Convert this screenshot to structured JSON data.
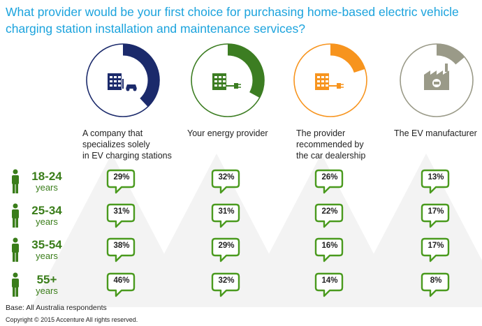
{
  "title": {
    "lines": [
      "What provider would be your first choice for purchasing home-based electric vehicle",
      "charging station installation and maintenance services?"
    ]
  },
  "colors": {
    "title": "#1ba3dd",
    "age_green": "#3a7d1a",
    "bubble_border": "#4a9a1e",
    "provider_navy": "#1b2a6b",
    "provider_green": "#3c7d22",
    "provider_orange": "#f7941e",
    "provider_gray": "#9a9a88"
  },
  "footer": {
    "base": "Base: All Australia respondents",
    "copyright": "Copyright © 2015 Accenture All rights reserved."
  },
  "chart_data": {
    "type": "table",
    "title": "What provider would be your first choice for purchasing home-based electric vehicle charging station installation and maintenance services?",
    "categories": [
      {
        "label_lines": [
          "A company that",
          "specializes solely",
          "in EV charging stations"
        ],
        "icon": "building-car-charger-icon",
        "color": "#1b2a6b"
      },
      {
        "label_lines": [
          "Your energy provider"
        ],
        "icon": "building-plug-icon",
        "color": "#3c7d22"
      },
      {
        "label_lines": [
          "The provider",
          "recommended by",
          "the car dealership"
        ],
        "icon": "building-plug-icon",
        "color": "#f7941e"
      },
      {
        "label_lines": [
          "The EV manufacturer"
        ],
        "icon": "factory-icon",
        "color": "#9a9a88"
      }
    ],
    "rows": [
      {
        "range": "18-24",
        "unit": "years",
        "values": [
          29,
          32,
          26,
          13
        ],
        "labels": [
          "29%",
          "32%",
          "26%",
          "13%"
        ]
      },
      {
        "range": "25-34",
        "unit": "years",
        "values": [
          31,
          31,
          22,
          17
        ],
        "labels": [
          "31%",
          "31%",
          "22%",
          "17%"
        ]
      },
      {
        "range": "35-54",
        "unit": "years",
        "values": [
          38,
          29,
          16,
          17
        ],
        "labels": [
          "38%",
          "29%",
          "16%",
          "17%"
        ]
      },
      {
        "range": "55+",
        "unit": "years",
        "values": [
          46,
          32,
          14,
          8
        ],
        "labels": [
          "46%",
          "32%",
          "14%",
          "8%"
        ]
      }
    ],
    "ring_fill_fraction": [
      0.38,
      0.33,
      0.2,
      0.14
    ],
    "person_icons": [
      "person-icon",
      "person-icon",
      "person-icon",
      "person-icon"
    ]
  }
}
